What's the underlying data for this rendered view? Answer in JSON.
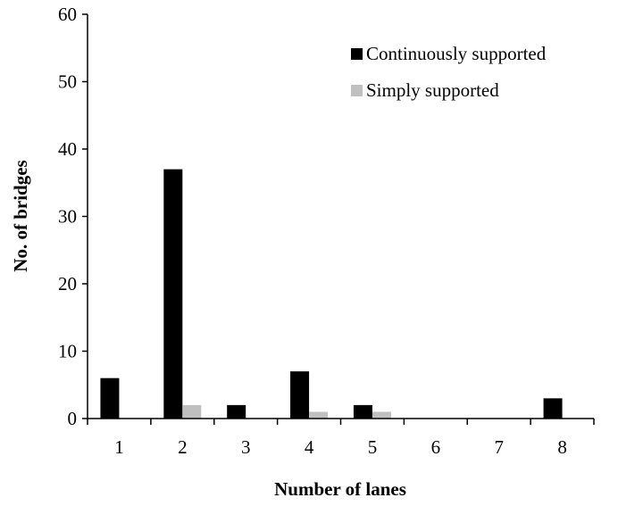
{
  "chart_data": {
    "type": "bar",
    "title": "",
    "xlabel": "Number of lanes",
    "ylabel": "No. of bridges",
    "categories": [
      "1",
      "2",
      "3",
      "4",
      "5",
      "6",
      "7",
      "8"
    ],
    "ylim": [
      0,
      60
    ],
    "yticks": [
      "0",
      "10",
      "20",
      "30",
      "40",
      "50",
      "60"
    ],
    "grid": false,
    "legend_position": "top-right",
    "series": [
      {
        "name": "Continuously supported",
        "color": "#000000",
        "values": [
          6,
          37,
          2,
          7,
          2,
          0,
          0,
          3
        ]
      },
      {
        "name": "Simply supported",
        "color": "#c0c0c0",
        "values": [
          0,
          2,
          0,
          1,
          1,
          0,
          0,
          0
        ]
      }
    ]
  }
}
